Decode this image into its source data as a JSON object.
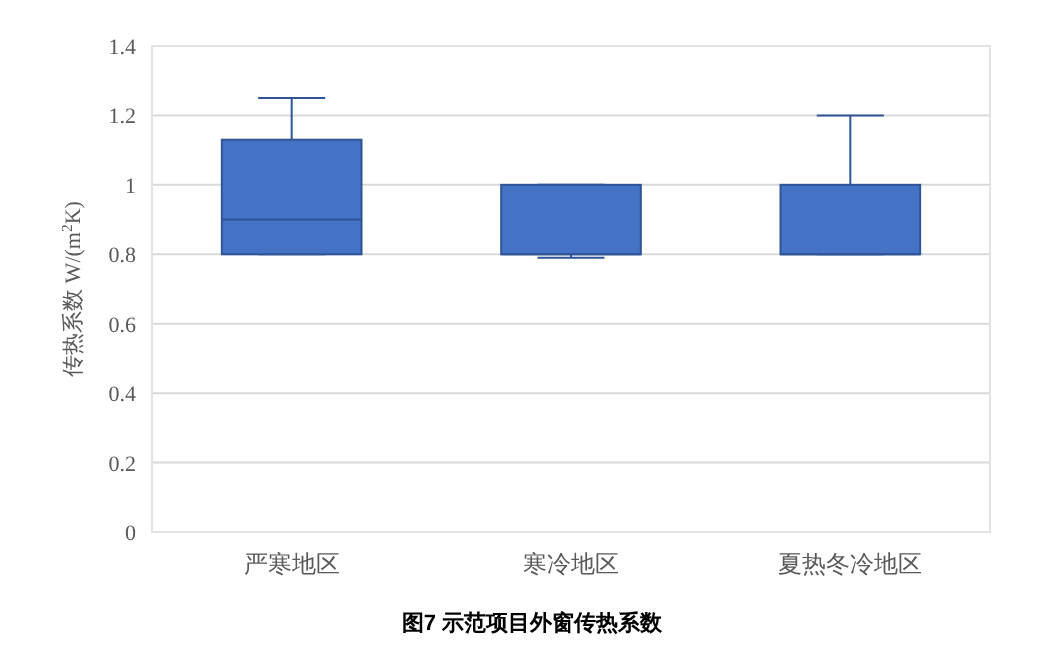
{
  "chart_data": {
    "type": "box",
    "title": "图7 示范项目外窗传热系数",
    "ylabel": "传热系数 W/(m$^{2}$K)",
    "categories": [
      "严寒地区",
      "寒冷地区",
      "夏热冬冷地区"
    ],
    "boxes": [
      {
        "low": 0.8,
        "q1": 0.8,
        "median": 0.9,
        "q3": 1.13,
        "high": 1.25
      },
      {
        "low": 0.79,
        "q1": 0.8,
        "median": 0.8,
        "q3": 1.0,
        "high": 1.0
      },
      {
        "low": 0.8,
        "q1": 0.8,
        "median": 0.8,
        "q3": 1.0,
        "high": 1.2
      }
    ],
    "color": "#4472c4",
    "ylim": [
      0,
      1.4
    ],
    "yticks": [
      0,
      0.2,
      0.4,
      0.6,
      0.8,
      1,
      1.2,
      1.4
    ],
    "grid": "y"
  }
}
